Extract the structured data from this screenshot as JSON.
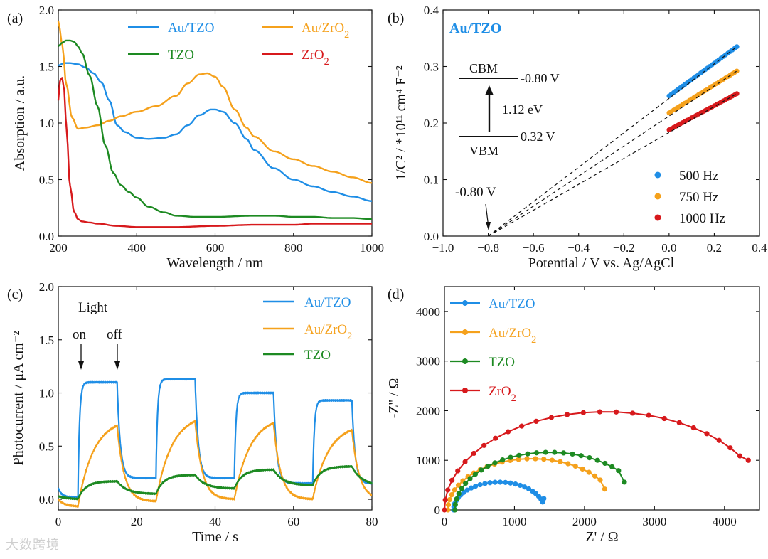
{
  "watermark": "大数跨境",
  "colors": {
    "blue": "#1f8ee6",
    "orange": "#f5a11c",
    "green": "#1d8a22",
    "red": "#d7191c",
    "black": "#111111"
  },
  "chart_data": [
    {
      "panel": "(a)",
      "type": "line",
      "xlabel": "Wavelength / nm",
      "ylabel": "Absorption / a.u.",
      "xlim": [
        200,
        1000
      ],
      "ylim": [
        0,
        2.0
      ],
      "xticks": [
        200,
        400,
        600,
        800,
        1000
      ],
      "yticks": [
        0.0,
        0.5,
        1.0,
        1.5,
        2.0
      ],
      "legend": [
        "Au/TZO",
        "Au/ZrO₂",
        "TZO",
        "ZrO₂"
      ],
      "series": [
        {
          "name": "Au/TZO",
          "color": "blue",
          "x": [
            200,
            215,
            230,
            250,
            270,
            290,
            310,
            330,
            350,
            370,
            400,
            430,
            470,
            500,
            530,
            560,
            590,
            600,
            620,
            650,
            680,
            700,
            750,
            800,
            850,
            900,
            950,
            1000
          ],
          "y": [
            1.51,
            1.53,
            1.53,
            1.52,
            1.49,
            1.44,
            1.36,
            1.2,
            0.98,
            0.92,
            0.87,
            0.86,
            0.87,
            0.9,
            0.98,
            1.07,
            1.12,
            1.12,
            1.1,
            1.0,
            0.86,
            0.76,
            0.6,
            0.5,
            0.44,
            0.39,
            0.35,
            0.31
          ]
        },
        {
          "name": "Au/ZrO₂",
          "color": "orange",
          "x": [
            200,
            210,
            220,
            235,
            250,
            270,
            300,
            330,
            360,
            400,
            450,
            500,
            530,
            560,
            580,
            600,
            620,
            650,
            680,
            700,
            750,
            800,
            850,
            900,
            950,
            1000
          ],
          "y": [
            1.9,
            1.7,
            1.35,
            1.05,
            0.95,
            0.96,
            0.98,
            1.02,
            1.06,
            1.1,
            1.15,
            1.24,
            1.35,
            1.43,
            1.44,
            1.41,
            1.32,
            1.12,
            0.96,
            0.88,
            0.75,
            0.68,
            0.62,
            0.57,
            0.52,
            0.47
          ]
        },
        {
          "name": "TZO",
          "color": "green",
          "x": [
            200,
            210,
            220,
            230,
            240,
            250,
            260,
            280,
            300,
            320,
            340,
            360,
            380,
            400,
            430,
            470,
            500,
            550,
            600,
            700,
            750,
            800,
            850,
            900,
            950,
            1000
          ],
          "y": [
            1.68,
            1.71,
            1.73,
            1.73,
            1.72,
            1.68,
            1.62,
            1.42,
            1.15,
            0.8,
            0.56,
            0.45,
            0.39,
            0.34,
            0.26,
            0.21,
            0.18,
            0.17,
            0.17,
            0.18,
            0.18,
            0.17,
            0.17,
            0.16,
            0.16,
            0.15
          ]
        },
        {
          "name": "ZrO₂",
          "color": "red",
          "x": [
            200,
            205,
            210,
            215,
            220,
            230,
            240,
            250,
            260,
            280,
            300,
            350,
            400,
            450,
            500,
            600,
            700,
            800,
            850,
            900,
            950,
            1000
          ],
          "y": [
            1.2,
            1.38,
            1.4,
            1.3,
            1.0,
            0.45,
            0.22,
            0.15,
            0.13,
            0.12,
            0.11,
            0.09,
            0.08,
            0.08,
            0.08,
            0.09,
            0.1,
            0.1,
            0.11,
            0.11,
            0.11,
            0.11
          ]
        }
      ]
    },
    {
      "panel": "(b)",
      "type": "scatter",
      "title": "Au/TZO",
      "xlabel": "Potential / V vs. Ag/AgCl",
      "ylabel": "1/C² / *10¹¹ cm⁴ F⁻²",
      "xlim": [
        -1.0,
        0.4
      ],
      "ylim": [
        0,
        0.4
      ],
      "xticks": [
        -1.0,
        -0.8,
        -0.6,
        -0.4,
        -0.2,
        0.0,
        0.2,
        0.4
      ],
      "yticks": [
        0.0,
        0.1,
        0.2,
        0.3,
        0.4
      ],
      "legend": [
        "500 Hz",
        "750 Hz",
        "1000 Hz"
      ],
      "series": [
        {
          "name": "500 Hz",
          "color": "blue",
          "x_range": [
            0.0,
            0.3
          ],
          "y_range": [
            0.248,
            0.335
          ]
        },
        {
          "name": "750 Hz",
          "color": "orange",
          "x_range": [
            0.0,
            0.3
          ],
          "y_range": [
            0.218,
            0.292
          ]
        },
        {
          "name": "1000 Hz",
          "color": "red",
          "x_range": [
            0.0,
            0.3
          ],
          "y_range": [
            0.188,
            0.252
          ]
        }
      ],
      "extrapolation_intercept": -0.8,
      "annotations": {
        "intercept": "-0.80 V",
        "cbm": "CBM",
        "cbm_value": "-0.80 V",
        "gap": "1.12 eV",
        "vbm": "VBM",
        "vbm_value": "0.32 V"
      }
    },
    {
      "panel": "(c)",
      "type": "line",
      "xlabel": "Time / s",
      "ylabel": "Photocurrent / μA cm⁻²",
      "xlim": [
        0,
        80
      ],
      "ylim": [
        -0.1,
        2.0
      ],
      "xticks": [
        0,
        20,
        40,
        60,
        80
      ],
      "yticks": [
        0.0,
        0.5,
        1.0,
        1.5,
        2.0
      ],
      "legend": [
        "Au/TZO",
        "Au/ZrO₂",
        "TZO"
      ],
      "annotations": {
        "light": "Light",
        "on": "on",
        "off": "off"
      },
      "light_on": [
        5,
        25,
        45,
        65
      ],
      "light_off": [
        15,
        35,
        55,
        75
      ],
      "series": [
        {
          "name": "Au/TZO",
          "color": "blue",
          "baseline": [
            0.02,
            0.2,
            0.2,
            0.15
          ],
          "plateau": [
            1.1,
            1.13,
            1.0,
            0.93
          ],
          "dark_start": 0.12,
          "tau_rise": 0.4,
          "tau_fall": 0.8
        },
        {
          "name": "Au/ZrO₂",
          "color": "orange",
          "baseline": [
            -0.07,
            -0.02,
            0.0,
            0.0
          ],
          "plateau": [
            0.76,
            0.8,
            0.78,
            0.71
          ],
          "dark_start": 0.0,
          "tau_rise": 4.0,
          "tau_fall": 1.8
        },
        {
          "name": "TZO",
          "color": "green",
          "baseline": [
            0.0,
            0.05,
            0.1,
            0.13
          ],
          "plateau": [
            0.17,
            0.23,
            0.28,
            0.31
          ],
          "dark_start": 0.03,
          "tau_rise": 2.0,
          "tau_fall": 2.5
        }
      ]
    },
    {
      "panel": "(d)",
      "type": "line",
      "xlabel": "Z' / Ω",
      "ylabel": "-Z'' / Ω",
      "xlim": [
        0,
        4500
      ],
      "ylim": [
        0,
        4500
      ],
      "xticks": [
        0,
        1000,
        2000,
        3000,
        4000
      ],
      "yticks": [
        0,
        1000,
        2000,
        3000,
        4000
      ],
      "legend": [
        "Au/TZO",
        "Au/ZrO₂",
        "TZO",
        "ZrO₂"
      ],
      "series": [
        {
          "name": "Au/TZO",
          "color": "blue",
          "center": 780,
          "radius": 650,
          "end_x": 1420,
          "end_y": 230
        },
        {
          "name": "Au/ZrO₂",
          "color": "orange",
          "center": 1250,
          "radius": 1200,
          "end_x": 2290,
          "end_y": 420
        },
        {
          "name": "TZO",
          "color": "green",
          "center": 1500,
          "radius": 1350,
          "end_x": 2570,
          "end_y": 560
        },
        {
          "name": "ZrO₂",
          "color": "red",
          "center": 2300,
          "radius": 2300,
          "end_x": 4340,
          "end_y": 1000
        }
      ]
    }
  ]
}
